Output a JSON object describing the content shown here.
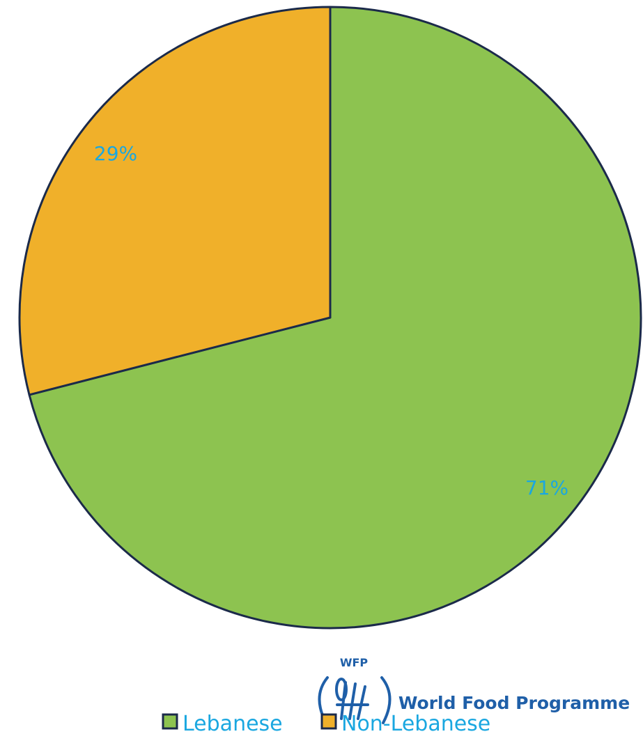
{
  "chart_data": {
    "type": "pie",
    "categories": [
      "Lebanese",
      "Non-Lebanese"
    ],
    "values": [
      71,
      29
    ],
    "labels": [
      "71%",
      "29%"
    ],
    "colors": [
      "#8dc350",
      "#f0b02a"
    ],
    "start_angle_deg": 0,
    "direction": "clockwise",
    "label_color": "#1aa7e0",
    "legend": {
      "position": "bottom",
      "items": [
        "Lebanese",
        "Non-Lebanese"
      ]
    }
  },
  "logo": {
    "acronym": "WFP",
    "name": "World Food Programme",
    "color": "#1f5fa8"
  },
  "colors": {
    "outline": "#1b2a4a",
    "background": "#ffffff"
  }
}
